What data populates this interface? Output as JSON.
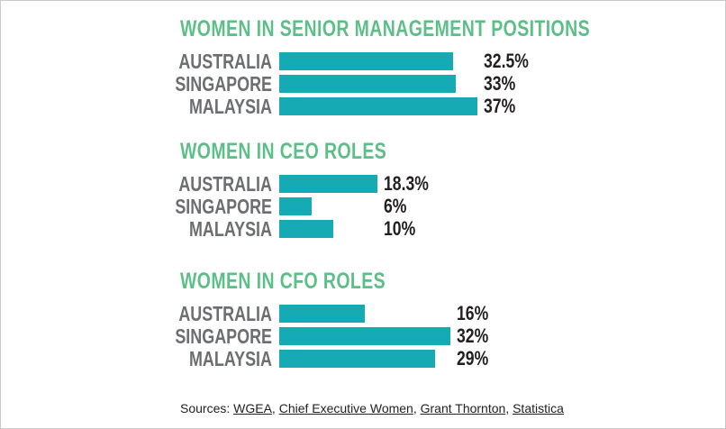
{
  "chart_data": [
    {
      "type": "bar",
      "orientation": "horizontal",
      "title": "WOMEN IN SENIOR MANAGEMENT POSITIONS",
      "categories": [
        "AUSTRALIA",
        "SINGAPORE",
        "MALAYSIA"
      ],
      "values": [
        32.5,
        33,
        37
      ],
      "labels": [
        "32.5%",
        "33%",
        "37%"
      ],
      "unit": "%"
    },
    {
      "type": "bar",
      "orientation": "horizontal",
      "title": "WOMEN IN CEO ROLES",
      "categories": [
        "AUSTRALIA",
        "SINGAPORE",
        "MALAYSIA"
      ],
      "values": [
        18.3,
        6,
        10
      ],
      "labels": [
        "18.3%",
        "6%",
        "10%"
      ],
      "unit": "%"
    },
    {
      "type": "bar",
      "orientation": "horizontal",
      "title": "WOMEN IN CFO ROLES",
      "categories": [
        "AUSTRALIA",
        "SINGAPORE",
        "MALAYSIA"
      ],
      "values": [
        16,
        32,
        29
      ],
      "labels": [
        "16%",
        "32%",
        "29%"
      ],
      "unit": "%"
    }
  ],
  "sources": {
    "prefix": "Sources: ",
    "links": [
      "WGEA",
      "Chief Executive Women",
      "Grant Thornton",
      "Statistica"
    ]
  },
  "colors": {
    "title": "#5cbf87",
    "bar": "#15aab4",
    "category": "#6d6e71",
    "value": "#231f20"
  }
}
